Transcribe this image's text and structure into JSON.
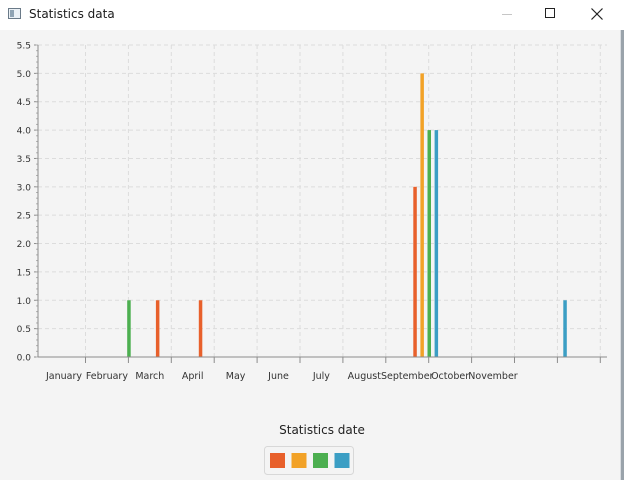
{
  "window": {
    "title": "Statistics data",
    "icon": "window-app-icon",
    "buttons": {
      "minimize": "minimize-icon",
      "maximize": "maximize-icon",
      "close": "close-icon"
    }
  },
  "chart_data": {
    "type": "bar",
    "xlabel": "Statistics date",
    "ylabel": "",
    "ylim": [
      0,
      5.5
    ],
    "ytick_step": 0.5,
    "grid": true,
    "legend_position": "bottom-center",
    "categories": [
      "January",
      "February",
      "March",
      "April",
      "May",
      "June",
      "July",
      "August",
      "September",
      "October",
      "November",
      "",
      ""
    ],
    "series": [
      {
        "color": "#e8602b",
        "values": [
          0,
          0,
          1,
          1,
          0,
          0,
          0,
          0,
          3,
          0,
          0,
          0,
          0
        ],
        "offsets": [
          0,
          0,
          -0.36,
          0,
          0,
          0,
          0,
          0,
          -0.36,
          0,
          0,
          0,
          0
        ]
      },
      {
        "color": "#f2a227",
        "values": [
          0,
          0,
          0,
          0,
          0,
          0,
          0,
          0,
          5,
          0,
          0,
          0,
          0
        ]
      },
      {
        "color": "#4caf50",
        "values": [
          0,
          1,
          0,
          0,
          0,
          0,
          0,
          0,
          4,
          0,
          0,
          0,
          0
        ]
      },
      {
        "color": "#3b9ec4",
        "values": [
          0,
          0,
          0,
          0,
          0,
          0,
          0,
          0,
          4,
          0,
          0,
          1,
          0
        ]
      }
    ]
  }
}
